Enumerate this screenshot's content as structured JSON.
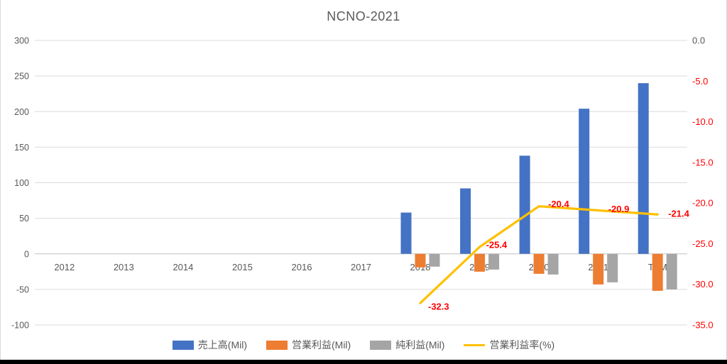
{
  "title": "NCNO-2021",
  "colors": {
    "revenue_bar": "#4472C4",
    "operating_bar": "#ED7D31",
    "net_bar": "#A5A5A5",
    "margin_line": "#FFC000",
    "negative_label": "#FF0000",
    "axis_text": "#595959",
    "gridline": "#DBDBDB",
    "zero_line": "#C0C0C0",
    "bottom_bar": "#000000"
  },
  "chart_data": {
    "type": "bar+line combo",
    "title": "NCNO-2021",
    "categories": [
      "2012",
      "2013",
      "2014",
      "2015",
      "2016",
      "2017",
      "2018",
      "2019",
      "2020",
      "2021",
      "TTM"
    ],
    "series": [
      {
        "key": "revenue",
        "name": "売上高(Mil)",
        "type": "bar",
        "axis": "left",
        "color": "#4472C4",
        "values": [
          null,
          null,
          null,
          null,
          null,
          null,
          58,
          92,
          138,
          204,
          240
        ]
      },
      {
        "key": "operating-income",
        "name": "営業利益(Mil)",
        "type": "bar",
        "axis": "left",
        "color": "#ED7D31",
        "values": [
          null,
          null,
          null,
          null,
          null,
          null,
          -19,
          -25,
          -28,
          -43,
          -52
        ]
      },
      {
        "key": "net-income",
        "name": "純利益(Mil)",
        "type": "bar",
        "axis": "left",
        "color": "#A5A5A5",
        "values": [
          null,
          null,
          null,
          null,
          null,
          null,
          -18,
          -22,
          -29,
          -40,
          -50
        ]
      },
      {
        "key": "operating-margin",
        "name": "営業利益率(%)",
        "type": "line",
        "axis": "right",
        "color": "#FFC000",
        "values": [
          null,
          null,
          null,
          null,
          null,
          null,
          -32.3,
          -25.4,
          -20.4,
          -20.9,
          -21.4
        ],
        "point_labels": [
          "-32.3",
          "-25.4",
          "-20.4",
          "-20.9",
          "-21.4"
        ]
      }
    ],
    "left_axis": {
      "min": -100,
      "max": 300,
      "ticks": [
        300,
        250,
        200,
        150,
        100,
        50,
        0,
        -50,
        -100
      ]
    },
    "right_axis": {
      "min": -35,
      "max": 0,
      "ticks": [
        {
          "label": "0.0",
          "value": 0
        },
        {
          "label": "-5.0",
          "value": -5
        },
        {
          "label": "-10.0",
          "value": -10
        },
        {
          "label": "-15.0",
          "value": -15
        },
        {
          "label": "-20.0",
          "value": -20
        },
        {
          "label": "-25.0",
          "value": -25
        },
        {
          "label": "-30.0",
          "value": -30
        },
        {
          "label": "-35.0",
          "value": -35
        }
      ]
    },
    "legend_position": "bottom",
    "grid": true
  }
}
